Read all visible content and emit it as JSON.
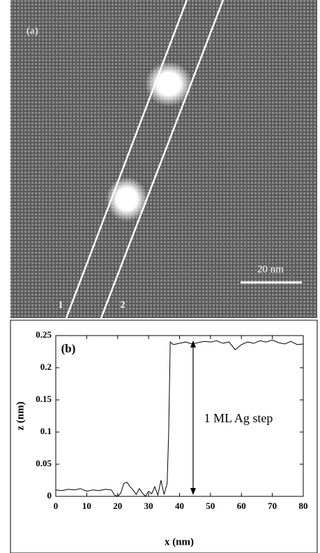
{
  "image_panel": {
    "label": "(a)",
    "scale_bar": "20 nm",
    "line_labels": [
      "1",
      "2"
    ]
  },
  "chart_data": {
    "type": "line",
    "panel_label": "(b)",
    "annotation": "1 ML Ag step",
    "x_label": "x (nm)",
    "y_label": "z (nm)",
    "x": [
      0,
      2,
      4,
      6,
      8,
      10,
      12,
      14,
      16,
      18,
      19,
      20,
      21,
      22,
      23,
      24,
      25,
      26,
      27,
      28,
      29,
      30,
      31,
      32,
      33,
      34,
      35,
      36,
      36.5,
      37,
      38,
      40,
      42,
      44,
      46,
      48,
      50,
      52,
      54,
      56,
      58,
      60,
      62,
      64,
      66,
      68,
      70,
      72,
      74,
      76,
      78,
      80
    ],
    "series": [
      {
        "color": "#000000",
        "values": [
          0.01,
          0.009,
          0.011,
          0.01,
          0.012,
          0.008,
          0.01,
          0.009,
          0.011,
          0.01,
          0.002,
          0,
          0.005,
          0.02,
          0.022,
          0.015,
          0.01,
          0.003,
          0.012,
          0.005,
          0.0,
          0.008,
          0.004,
          0.015,
          0.002,
          0.025,
          0.003,
          0.02,
          0.1,
          0.24,
          0.236,
          0.238,
          0.24,
          0.237,
          0.239,
          0.241,
          0.24,
          0.242,
          0.238,
          0.24,
          0.228,
          0.236,
          0.24,
          0.238,
          0.242,
          0.24,
          0.243,
          0.239,
          0.237,
          0.241,
          0.236,
          0.237
        ]
      }
    ],
    "xlim": [
      0,
      80
    ],
    "xticks": [
      0,
      10,
      20,
      30,
      40,
      50,
      60,
      70,
      80
    ],
    "ylim": [
      0,
      0.25
    ],
    "yticks": [
      0,
      0.05,
      0.1,
      0.15,
      0.2,
      0.25
    ]
  }
}
